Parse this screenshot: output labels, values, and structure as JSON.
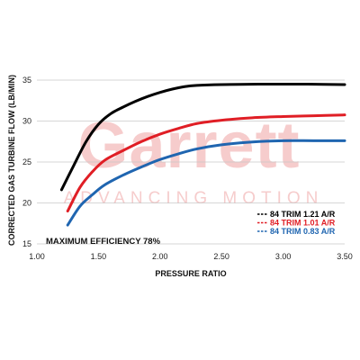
{
  "watermark": {
    "word": "Garrett",
    "tagline": "ADVANCING MOTION"
  },
  "chart_data": {
    "type": "line",
    "title": "",
    "xlabel": "PRESSURE RATIO",
    "ylabel": "CORRECTED GAS TURBINE FLOW (LB/MIN)",
    "xlim": [
      1.0,
      3.5
    ],
    "ylim": [
      15,
      35
    ],
    "x_ticks": [
      "1.00",
      "1.50",
      "2.00",
      "2.50",
      "3.00",
      "3.50"
    ],
    "y_ticks": [
      "15",
      "20",
      "25",
      "30",
      "35"
    ],
    "grid": "horizontal",
    "legend_position": "bottom-right",
    "annotation": "MAXIMUM EFFICIENCY 78%",
    "series": [
      {
        "name": "84 TRIM 1.21 A/R",
        "color": "#000000",
        "legend_label": "84 TRIM 1.21 A/R",
        "points": [
          [
            1.2,
            21.6
          ],
          [
            1.3,
            24.6
          ],
          [
            1.4,
            27.5
          ],
          [
            1.5,
            29.6
          ],
          [
            1.6,
            30.9
          ],
          [
            1.7,
            31.7
          ],
          [
            1.8,
            32.4
          ],
          [
            1.9,
            33.0
          ],
          [
            2.0,
            33.5
          ],
          [
            2.1,
            33.9
          ],
          [
            2.2,
            34.2
          ],
          [
            2.3,
            34.35
          ],
          [
            2.5,
            34.45
          ],
          [
            2.8,
            34.5
          ],
          [
            3.0,
            34.5
          ],
          [
            3.2,
            34.5
          ],
          [
            3.5,
            34.45
          ]
        ]
      },
      {
        "name": "84 TRIM 1.01 A/R",
        "color": "#e01e25",
        "legend_label": "84 TRIM 1.01 A/R",
        "points": [
          [
            1.25,
            19.0
          ],
          [
            1.35,
            21.9
          ],
          [
            1.45,
            23.8
          ],
          [
            1.55,
            25.2
          ],
          [
            1.7,
            26.4
          ],
          [
            1.85,
            27.5
          ],
          [
            2.0,
            28.4
          ],
          [
            2.15,
            29.1
          ],
          [
            2.3,
            29.7
          ],
          [
            2.5,
            30.1
          ],
          [
            2.75,
            30.4
          ],
          [
            3.0,
            30.55
          ],
          [
            3.25,
            30.65
          ],
          [
            3.5,
            30.75
          ]
        ]
      },
      {
        "name": "84 TRIM 0.83 A/R",
        "color": "#1f65b0",
        "legend_label": "84 TRIM 0.83 A/R",
        "points": [
          [
            1.25,
            17.3
          ],
          [
            1.35,
            19.6
          ],
          [
            1.45,
            21.0
          ],
          [
            1.55,
            22.2
          ],
          [
            1.7,
            23.4
          ],
          [
            1.85,
            24.4
          ],
          [
            2.0,
            25.3
          ],
          [
            2.15,
            26.0
          ],
          [
            2.3,
            26.6
          ],
          [
            2.5,
            27.1
          ],
          [
            2.75,
            27.45
          ],
          [
            3.0,
            27.6
          ],
          [
            3.25,
            27.6
          ],
          [
            3.5,
            27.6
          ]
        ]
      }
    ]
  }
}
